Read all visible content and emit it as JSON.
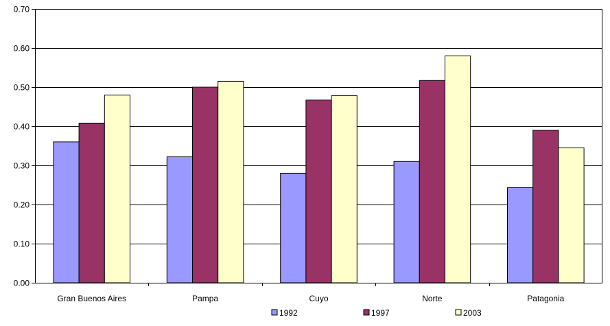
{
  "chart_data": {
    "type": "bar",
    "categories": [
      "Gran Buenos Aires",
      "Pampa",
      "Cuyo",
      "Norte",
      "Patagonia"
    ],
    "series": [
      {
        "name": "1992",
        "color": "#9999ff",
        "values": [
          0.36,
          0.322,
          0.28,
          0.31,
          0.243
        ]
      },
      {
        "name": "1997",
        "color": "#993366",
        "values": [
          0.408,
          0.5,
          0.467,
          0.517,
          0.39
        ]
      },
      {
        "name": "2003",
        "color": "#ffffcc",
        "values": [
          0.48,
          0.515,
          0.478,
          0.58,
          0.345
        ]
      }
    ],
    "yticks": [
      "0.00",
      "0.10",
      "0.20",
      "0.30",
      "0.40",
      "0.50",
      "0.60",
      "0.70"
    ],
    "ylim": [
      0,
      0.7
    ],
    "grid": true,
    "legend_position": "bottom"
  }
}
